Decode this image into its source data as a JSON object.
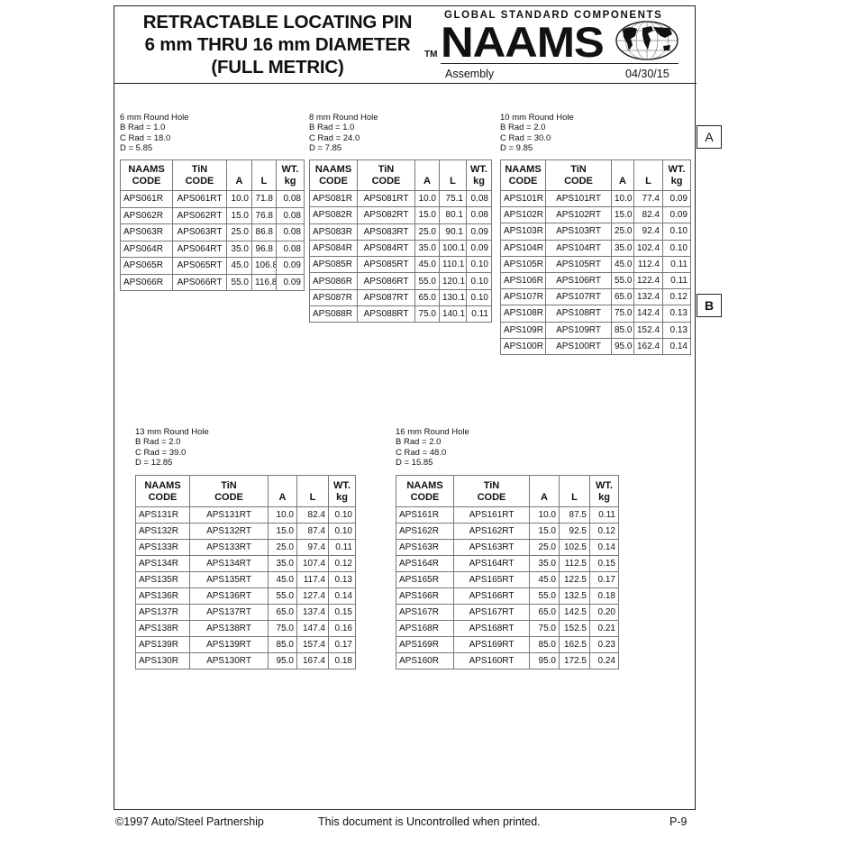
{
  "header": {
    "title_lines": [
      "RETRACTABLE LOCATING PIN",
      "6 mm THRU 16 mm DIAMETER",
      "(FULL METRIC)"
    ],
    "logo_tagline": "GLOBAL STANDARD COMPONENTS",
    "logo_text": "NAAMS",
    "trademark": "TM",
    "section": "Assembly",
    "date": "04/30/15"
  },
  "columns": {
    "naams": [
      "NAAMS",
      "CODE"
    ],
    "tin": [
      "TiN",
      "CODE"
    ],
    "a": "A",
    "l": "L",
    "wt": [
      "WT.",
      "kg"
    ]
  },
  "tables": [
    {
      "spec": [
        "6 mm Round Hole",
        "B Rad = 1.0",
        "C Rad = 18.0",
        "D = 5.85"
      ],
      "rows": [
        [
          "APS061R",
          "APS061RT",
          "10.0",
          "71.8",
          "0.08"
        ],
        [
          "APS062R",
          "APS062RT",
          "15.0",
          "76.8",
          "0.08"
        ],
        [
          "APS063R",
          "APS063RT",
          "25.0",
          "86.8",
          "0.08"
        ],
        [
          "APS064R",
          "APS064RT",
          "35.0",
          "96.8",
          "0.08"
        ],
        [
          "APS065R",
          "APS065RT",
          "45.0",
          "106.8",
          "0.09"
        ],
        [
          "APS066R",
          "APS066RT",
          "55.0",
          "116.8",
          "0.09"
        ]
      ]
    },
    {
      "spec": [
        "8 mm Round Hole",
        "B Rad = 1.0",
        "C Rad = 24.0",
        "D = 7.85"
      ],
      "rows": [
        [
          "APS081R",
          "APS081RT",
          "10.0",
          "75.1",
          "0.08"
        ],
        [
          "APS082R",
          "APS082RT",
          "15.0",
          "80.1",
          "0.08"
        ],
        [
          "APS083R",
          "APS083RT",
          "25.0",
          "90.1",
          "0.09"
        ],
        [
          "APS084R",
          "APS084RT",
          "35.0",
          "100.1",
          "0.09"
        ],
        [
          "APS085R",
          "APS085RT",
          "45.0",
          "110.1",
          "0.10"
        ],
        [
          "APS086R",
          "APS086RT",
          "55.0",
          "120.1",
          "0.10"
        ],
        [
          "APS087R",
          "APS087RT",
          "65.0",
          "130.1",
          "0.10"
        ],
        [
          "APS088R",
          "APS088RT",
          "75.0",
          "140.1",
          "0.11"
        ]
      ]
    },
    {
      "spec": [
        "10 mm Round Hole",
        "B Rad = 2.0",
        "C Rad = 30.0",
        "D = 9.85"
      ],
      "rows": [
        [
          "APS101R",
          "APS101RT",
          "10.0",
          "77.4",
          "0.09"
        ],
        [
          "APS102R",
          "APS102RT",
          "15.0",
          "82.4",
          "0.09"
        ],
        [
          "APS103R",
          "APS103RT",
          "25.0",
          "92.4",
          "0.10"
        ],
        [
          "APS104R",
          "APS104RT",
          "35.0",
          "102.4",
          "0.10"
        ],
        [
          "APS105R",
          "APS105RT",
          "45.0",
          "112.4",
          "0.11"
        ],
        [
          "APS106R",
          "APS106RT",
          "55.0",
          "122.4",
          "0.11"
        ],
        [
          "APS107R",
          "APS107RT",
          "65.0",
          "132.4",
          "0.12"
        ],
        [
          "APS108R",
          "APS108RT",
          "75.0",
          "142.4",
          "0.13"
        ],
        [
          "APS109R",
          "APS109RT",
          "85.0",
          "152.4",
          "0.13"
        ],
        [
          "APS100R",
          "APS100RT",
          "95.0",
          "162.4",
          "0.14"
        ]
      ]
    },
    {
      "spec": [
        "13 mm Round Hole",
        "B Rad = 2.0",
        "C Rad = 39.0",
        "D = 12.85"
      ],
      "rows": [
        [
          "APS131R",
          "APS131RT",
          "10.0",
          "82.4",
          "0.10"
        ],
        [
          "APS132R",
          "APS132RT",
          "15.0",
          "87.4",
          "0.10"
        ],
        [
          "APS133R",
          "APS133RT",
          "25.0",
          "97.4",
          "0.11"
        ],
        [
          "APS134R",
          "APS134RT",
          "35.0",
          "107.4",
          "0.12"
        ],
        [
          "APS135R",
          "APS135RT",
          "45.0",
          "117.4",
          "0.13"
        ],
        [
          "APS136R",
          "APS136RT",
          "55.0",
          "127.4",
          "0.14"
        ],
        [
          "APS137R",
          "APS137RT",
          "65.0",
          "137.4",
          "0.15"
        ],
        [
          "APS138R",
          "APS138RT",
          "75.0",
          "147.4",
          "0.16"
        ],
        [
          "APS139R",
          "APS139RT",
          "85.0",
          "157.4",
          "0.17"
        ],
        [
          "APS130R",
          "APS130RT",
          "95.0",
          "167.4",
          "0.18"
        ]
      ]
    },
    {
      "spec": [
        "16 mm Round Hole",
        "B Rad = 2.0",
        "C Rad = 48.0",
        "D = 15.85"
      ],
      "rows": [
        [
          "APS161R",
          "APS161RT",
          "10.0",
          "87.5",
          "0.11"
        ],
        [
          "APS162R",
          "APS162RT",
          "15.0",
          "92.5",
          "0.12"
        ],
        [
          "APS163R",
          "APS163RT",
          "25.0",
          "102.5",
          "0.14"
        ],
        [
          "APS164R",
          "APS164RT",
          "35.0",
          "112.5",
          "0.15"
        ],
        [
          "APS165R",
          "APS165RT",
          "45.0",
          "122.5",
          "0.17"
        ],
        [
          "APS166R",
          "APS166RT",
          "55.0",
          "132.5",
          "0.18"
        ],
        [
          "APS167R",
          "APS167RT",
          "65.0",
          "142.5",
          "0.20"
        ],
        [
          "APS168R",
          "APS168RT",
          "75.0",
          "152.5",
          "0.21"
        ],
        [
          "APS169R",
          "APS169RT",
          "85.0",
          "162.5",
          "0.23"
        ],
        [
          "APS160R",
          "APS160RT",
          "95.0",
          "172.5",
          "0.24"
        ]
      ]
    }
  ],
  "zone_tags": [
    "A",
    "B"
  ],
  "footer": {
    "copyright": "©1997 Auto/Steel Partnership",
    "notice": "This document is Uncontrolled when printed.",
    "page": "P-9"
  }
}
